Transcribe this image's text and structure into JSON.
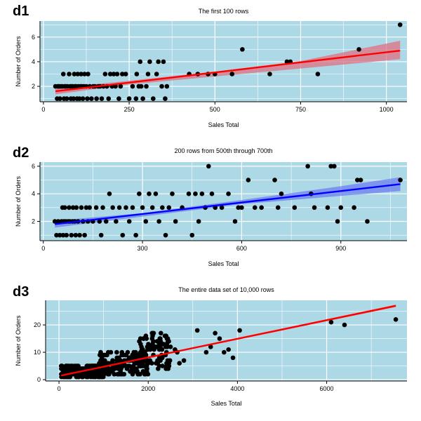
{
  "chart_data": [
    {
      "type": "scatter",
      "panel_label": "d1",
      "title": "The first 100 rows",
      "xlabel": "Sales Total",
      "ylabel": "Number of Orders",
      "xlim": [
        -10,
        1060
      ],
      "ylim": [
        0.75,
        7.3
      ],
      "xticks": [
        0,
        250,
        500,
        750,
        1000
      ],
      "yticks": [
        2,
        4,
        6
      ],
      "grid": true,
      "background": "#add8e6",
      "fit_color": "#ff0000",
      "band_color": "#e07080",
      "points": [
        [
          35,
          2
        ],
        [
          40,
          1
        ],
        [
          42,
          2
        ],
        [
          45,
          2
        ],
        [
          48,
          1
        ],
        [
          50,
          2
        ],
        [
          55,
          2
        ],
        [
          58,
          3
        ],
        [
          60,
          1
        ],
        [
          62,
          2
        ],
        [
          65,
          2
        ],
        [
          68,
          1
        ],
        [
          70,
          2
        ],
        [
          75,
          3
        ],
        [
          78,
          2
        ],
        [
          80,
          1
        ],
        [
          82,
          2
        ],
        [
          85,
          2
        ],
        [
          88,
          1
        ],
        [
          90,
          3
        ],
        [
          92,
          2
        ],
        [
          95,
          2
        ],
        [
          98,
          1
        ],
        [
          100,
          3
        ],
        [
          102,
          2
        ],
        [
          105,
          1
        ],
        [
          108,
          2
        ],
        [
          110,
          3
        ],
        [
          112,
          2
        ],
        [
          115,
          1
        ],
        [
          118,
          2
        ],
        [
          120,
          3
        ],
        [
          125,
          2
        ],
        [
          128,
          1
        ],
        [
          130,
          3
        ],
        [
          135,
          2
        ],
        [
          140,
          1
        ],
        [
          145,
          2
        ],
        [
          150,
          2
        ],
        [
          155,
          1
        ],
        [
          160,
          2
        ],
        [
          165,
          2
        ],
        [
          170,
          1
        ],
        [
          175,
          2
        ],
        [
          180,
          3
        ],
        [
          185,
          2
        ],
        [
          190,
          1
        ],
        [
          195,
          3
        ],
        [
          200,
          2
        ],
        [
          205,
          3
        ],
        [
          210,
          2
        ],
        [
          215,
          3
        ],
        [
          220,
          1
        ],
        [
          225,
          2
        ],
        [
          230,
          3
        ],
        [
          240,
          3
        ],
        [
          250,
          1
        ],
        [
          260,
          2
        ],
        [
          270,
          1
        ],
        [
          272,
          3
        ],
        [
          278,
          2
        ],
        [
          282,
          4
        ],
        [
          285,
          2
        ],
        [
          290,
          1
        ],
        [
          300,
          2
        ],
        [
          305,
          3
        ],
        [
          310,
          4
        ],
        [
          320,
          1
        ],
        [
          330,
          3
        ],
        [
          335,
          4
        ],
        [
          345,
          2
        ],
        [
          350,
          4
        ],
        [
          355,
          1
        ],
        [
          360,
          2
        ],
        [
          425,
          3
        ],
        [
          450,
          3
        ],
        [
          480,
          3
        ],
        [
          500,
          3
        ],
        [
          550,
          3
        ],
        [
          580,
          5
        ],
        [
          660,
          3
        ],
        [
          710,
          4
        ],
        [
          720,
          4
        ],
        [
          800,
          3
        ],
        [
          920,
          5
        ],
        [
          1040,
          7
        ]
      ],
      "fit": {
        "x": [
          35,
          1040
        ],
        "y": [
          1.6,
          4.9
        ]
      },
      "band": {
        "x": [
          35,
          250,
          500,
          750,
          1040
        ],
        "lower": [
          1.35,
          2.15,
          2.8,
          3.45,
          4.2
        ],
        "upper": [
          1.85,
          2.45,
          3.2,
          4.05,
          5.7
        ]
      }
    },
    {
      "type": "scatter",
      "panel_label": "d2",
      "title": "200 rows from 500th through 700th",
      "xlabel": "Sales Total",
      "ylabel": "Number of Orders",
      "xlim": [
        -10,
        1100
      ],
      "ylim": [
        0.6,
        6.3
      ],
      "xticks": [
        0,
        300,
        600,
        900
      ],
      "yticks": [
        2,
        4,
        6
      ],
      "grid": true,
      "background": "#add8e6",
      "fit_color": "#0000ff",
      "band_color": "#6e7ff0",
      "points": [
        [
          35,
          2
        ],
        [
          40,
          1
        ],
        [
          45,
          2
        ],
        [
          50,
          1
        ],
        [
          55,
          2
        ],
        [
          58,
          3
        ],
        [
          60,
          1
        ],
        [
          62,
          2
        ],
        [
          65,
          3
        ],
        [
          68,
          2
        ],
        [
          70,
          1
        ],
        [
          75,
          2
        ],
        [
          78,
          3
        ],
        [
          80,
          2
        ],
        [
          85,
          1
        ],
        [
          88,
          2
        ],
        [
          90,
          3
        ],
        [
          95,
          2
        ],
        [
          98,
          1
        ],
        [
          100,
          3
        ],
        [
          105,
          2
        ],
        [
          110,
          1
        ],
        [
          115,
          3
        ],
        [
          120,
          2
        ],
        [
          125,
          1
        ],
        [
          130,
          3
        ],
        [
          135,
          2
        ],
        [
          140,
          3
        ],
        [
          150,
          2
        ],
        [
          160,
          3
        ],
        [
          170,
          2
        ],
        [
          175,
          1
        ],
        [
          180,
          3
        ],
        [
          190,
          2
        ],
        [
          200,
          4
        ],
        [
          210,
          3
        ],
        [
          220,
          2
        ],
        [
          230,
          3
        ],
        [
          240,
          1
        ],
        [
          250,
          3
        ],
        [
          260,
          2
        ],
        [
          270,
          3
        ],
        [
          280,
          1
        ],
        [
          290,
          4
        ],
        [
          300,
          3
        ],
        [
          310,
          2
        ],
        [
          320,
          4
        ],
        [
          330,
          3
        ],
        [
          340,
          4
        ],
        [
          350,
          2
        ],
        [
          360,
          3
        ],
        [
          370,
          1
        ],
        [
          380,
          3
        ],
        [
          390,
          4
        ],
        [
          400,
          2
        ],
        [
          420,
          3
        ],
        [
          440,
          4
        ],
        [
          450,
          1
        ],
        [
          460,
          4
        ],
        [
          470,
          2
        ],
        [
          480,
          4
        ],
        [
          490,
          3
        ],
        [
          500,
          6
        ],
        [
          510,
          4
        ],
        [
          520,
          3
        ],
        [
          540,
          3
        ],
        [
          560,
          4
        ],
        [
          580,
          2
        ],
        [
          590,
          3
        ],
        [
          600,
          3
        ],
        [
          620,
          5
        ],
        [
          640,
          3
        ],
        [
          660,
          3
        ],
        [
          700,
          5
        ],
        [
          710,
          3
        ],
        [
          720,
          4
        ],
        [
          760,
          3
        ],
        [
          800,
          6
        ],
        [
          810,
          4
        ],
        [
          820,
          3
        ],
        [
          860,
          3
        ],
        [
          870,
          6
        ],
        [
          880,
          6
        ],
        [
          890,
          2
        ],
        [
          900,
          3
        ],
        [
          940,
          3
        ],
        [
          950,
          5
        ],
        [
          960,
          5
        ],
        [
          980,
          2
        ],
        [
          1080,
          5
        ]
      ],
      "fit": {
        "x": [
          35,
          1080
        ],
        "y": [
          1.8,
          4.7
        ]
      },
      "band": {
        "x": [
          35,
          300,
          600,
          900,
          1080
        ],
        "lower": [
          1.55,
          2.35,
          3.25,
          3.85,
          4.2
        ],
        "upper": [
          2.05,
          2.6,
          3.55,
          4.55,
          5.2
        ]
      }
    },
    {
      "type": "scatter",
      "panel_label": "d3",
      "title": "The entire data set of 10,000 rows",
      "xlabel": "Sales Total",
      "ylabel": "Number of Orders",
      "xlim": [
        -300,
        7800
      ],
      "ylim": [
        -0.5,
        29
      ],
      "xticks": [
        0,
        2000,
        4000,
        6000
      ],
      "yticks": [
        0,
        10,
        20
      ],
      "grid": true,
      "background": "#add8e6",
      "fit_color": "#ff0000",
      "band_color": "#ff4040",
      "points": [
        [
          3100,
          18
        ],
        [
          3300,
          10
        ],
        [
          3400,
          12
        ],
        [
          3500,
          17
        ],
        [
          3600,
          15
        ],
        [
          3700,
          10
        ],
        [
          3800,
          11
        ],
        [
          3900,
          8
        ],
        [
          4050,
          18
        ],
        [
          6100,
          21
        ],
        [
          6400,
          20
        ],
        [
          7550,
          22
        ],
        [
          2200,
          14
        ],
        [
          2400,
          16
        ],
        [
          2500,
          12
        ],
        [
          2600,
          11
        ],
        [
          2650,
          10
        ],
        [
          2700,
          6
        ],
        [
          2800,
          7
        ],
        [
          2300,
          9
        ],
        [
          2100,
          13
        ]
      ],
      "clusters": [
        {
          "x0": 50,
          "x1": 1000,
          "y0": 1,
          "y1": 5,
          "n": 260
        },
        {
          "x0": 900,
          "x1": 2000,
          "y0": 2,
          "y1": 10,
          "n": 180
        },
        {
          "x0": 1800,
          "x1": 2500,
          "y0": 4,
          "y1": 17,
          "n": 80
        }
      ],
      "fit": {
        "x": [
          50,
          7550
        ],
        "y": [
          1.5,
          27
        ]
      },
      "band": {
        "x": [
          50,
          7550
        ],
        "lower": [
          1.3,
          26.6
        ],
        "upper": [
          1.7,
          27.4
        ]
      }
    }
  ]
}
